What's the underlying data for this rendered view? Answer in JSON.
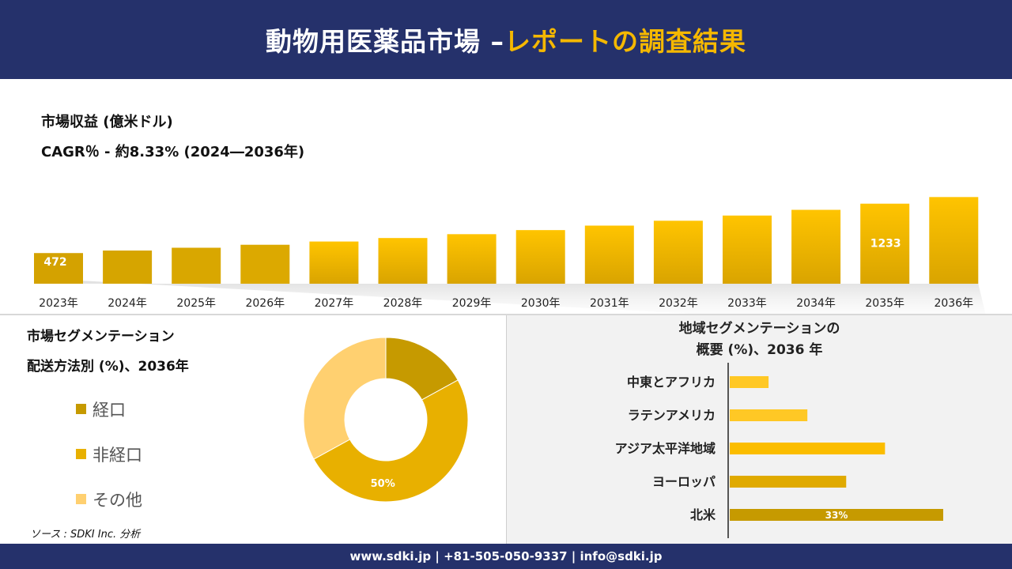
{
  "header": {
    "title_main": "動物用医薬品市場 –",
    "title_accent": "レポートの調査結果"
  },
  "colors": {
    "navy": "#25316b",
    "accent": "#f5b800",
    "dark_gold": "#c69a00",
    "gold": "#e8b000",
    "light_gold": "#ffd070"
  },
  "revenue": {
    "title": "市場収益 (億米ドル)",
    "cagr": "CAGR％ - 約8.33% (2024―2036年)"
  },
  "segmentation": {
    "title": "市場セグメンテーション",
    "subtitle": "配送方法別 (%)、2036年"
  },
  "region": {
    "title_line1": "地域セグメンテーションの",
    "title_line2": "概要 (%)、2036 年"
  },
  "source": "ソース : SDKI Inc. 分析",
  "footer": "www.sdki.jp | +81-505-050-9337 | info@sdki.jp",
  "chart_data": [
    {
      "type": "bar",
      "categories": [
        "2023年",
        "2024年",
        "2025年",
        "2026年",
        "2027年",
        "2028年",
        "2029年",
        "2030年",
        "2031年",
        "2032年",
        "2033年",
        "2034年",
        "2035年",
        "2036年"
      ],
      "values": [
        472,
        511,
        554,
        600,
        650,
        704,
        763,
        826,
        895,
        970,
        1050,
        1138,
        1233,
        1335
      ],
      "data_labels": {
        "2023年": "472",
        "2035年": "1233"
      },
      "title": "市場収益 (億米ドル)",
      "ylim": [
        0,
        1400
      ]
    },
    {
      "type": "pie",
      "labels": [
        "経口",
        "非経口",
        "その他"
      ],
      "values": [
        17,
        50,
        33
      ],
      "colors": [
        "#c69a00",
        "#e8b000",
        "#ffd070"
      ],
      "data_labels": [
        "",
        "50%",
        ""
      ]
    },
    {
      "type": "bar",
      "orientation": "horizontal",
      "categories": [
        "中東とアフリカ",
        "ラテンアメリカ",
        "アジア太平洋地域",
        "ヨーロッパ",
        "北米"
      ],
      "values": [
        6,
        12,
        24,
        18,
        33
      ],
      "colors": [
        "#ffc825",
        "#ffc825",
        "#fbbd00",
        "#e0aa00",
        "#c69a00"
      ],
      "data_labels": [
        "",
        "",
        "",
        "",
        "33%"
      ]
    }
  ]
}
